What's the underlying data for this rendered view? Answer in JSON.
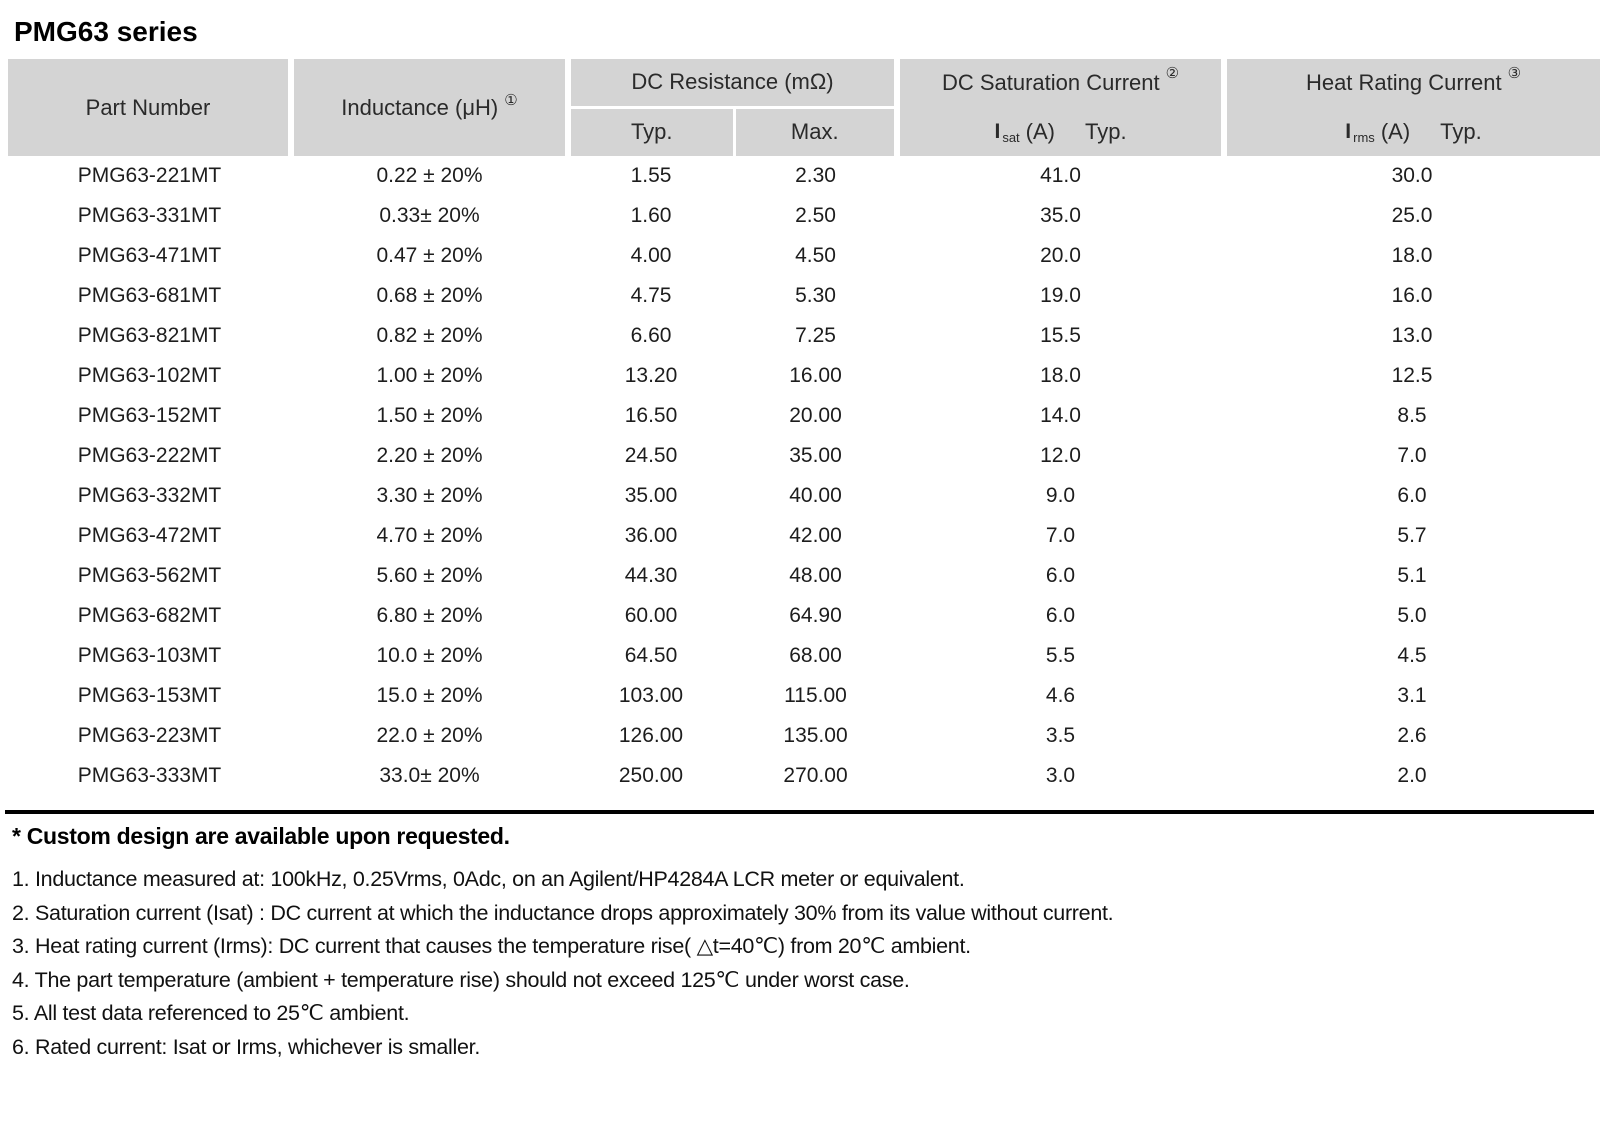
{
  "title": "PMG63 series",
  "colors": {
    "header_bg": "#d4d4d4",
    "rule": "#000000",
    "text": "#1d1d1d"
  },
  "table": {
    "headers": {
      "part_number": "Part Number",
      "inductance_label": "Inductance (μH)",
      "inductance_note_ref": "①",
      "dc_resistance_label": "DC Resistance (mΩ)",
      "typ": "Typ.",
      "max": "Max.",
      "saturation_label": "DC Saturation Current",
      "saturation_note_ref": "②",
      "saturation_sym": "I",
      "saturation_sym_sub": "sat",
      "saturation_unit": "(A)",
      "saturation_typ": "Typ.",
      "heat_label": "Heat Rating Current",
      "heat_note_ref": "③",
      "heat_sym": "I",
      "heat_sym_sub": "rms",
      "heat_unit": "(A)",
      "heat_typ": "Typ."
    },
    "rows": [
      {
        "part_number": "PMG63-221MT",
        "inductance": "0.22 ± 20%",
        "dcr_typ": "1.55",
        "dcr_max": "2.30",
        "isat": "41.0",
        "irms": "30.0"
      },
      {
        "part_number": "PMG63-331MT",
        "inductance": "0.33± 20%",
        "dcr_typ": "1.60",
        "dcr_max": "2.50",
        "isat": "35.0",
        "irms": "25.0"
      },
      {
        "part_number": "PMG63-471MT",
        "inductance": "0.47 ± 20%",
        "dcr_typ": "4.00",
        "dcr_max": "4.50",
        "isat": "20.0",
        "irms": "18.0"
      },
      {
        "part_number": "PMG63-681MT",
        "inductance": "0.68 ± 20%",
        "dcr_typ": "4.75",
        "dcr_max": "5.30",
        "isat": "19.0",
        "irms": "16.0"
      },
      {
        "part_number": "PMG63-821MT",
        "inductance": "0.82 ± 20%",
        "dcr_typ": "6.60",
        "dcr_max": "7.25",
        "isat": "15.5",
        "irms": "13.0"
      },
      {
        "part_number": "PMG63-102MT",
        "inductance": "1.00 ± 20%",
        "dcr_typ": "13.20",
        "dcr_max": "16.00",
        "isat": "18.0",
        "irms": "12.5"
      },
      {
        "part_number": "PMG63-152MT",
        "inductance": "1.50 ± 20%",
        "dcr_typ": "16.50",
        "dcr_max": "20.00",
        "isat": "14.0",
        "irms": "8.5"
      },
      {
        "part_number": "PMG63-222MT",
        "inductance": "2.20 ± 20%",
        "dcr_typ": "24.50",
        "dcr_max": "35.00",
        "isat": "12.0",
        "irms": "7.0"
      },
      {
        "part_number": "PMG63-332MT",
        "inductance": "3.30 ± 20%",
        "dcr_typ": "35.00",
        "dcr_max": "40.00",
        "isat": "9.0",
        "irms": "6.0"
      },
      {
        "part_number": "PMG63-472MT",
        "inductance": "4.70 ± 20%",
        "dcr_typ": "36.00",
        "dcr_max": "42.00",
        "isat": "7.0",
        "irms": "5.7"
      },
      {
        "part_number": "PMG63-562MT",
        "inductance": "5.60 ± 20%",
        "dcr_typ": "44.30",
        "dcr_max": "48.00",
        "isat": "6.0",
        "irms": "5.1"
      },
      {
        "part_number": "PMG63-682MT",
        "inductance": "6.80 ± 20%",
        "dcr_typ": "60.00",
        "dcr_max": "64.90",
        "isat": "6.0",
        "irms": "5.0"
      },
      {
        "part_number": "PMG63-103MT",
        "inductance": "10.0 ± 20%",
        "dcr_typ": "64.50",
        "dcr_max": "68.00",
        "isat": "5.5",
        "irms": "4.5"
      },
      {
        "part_number": "PMG63-153MT",
        "inductance": "15.0 ± 20%",
        "dcr_typ": "103.00",
        "dcr_max": "115.00",
        "isat": "4.6",
        "irms": "3.1"
      },
      {
        "part_number": "PMG63-223MT",
        "inductance": "22.0 ± 20%",
        "dcr_typ": "126.00",
        "dcr_max": "135.00",
        "isat": "3.5",
        "irms": "2.6"
      },
      {
        "part_number": "PMG63-333MT",
        "inductance": "33.0± 20%",
        "dcr_typ": "250.00",
        "dcr_max": "270.00",
        "isat": "3.0",
        "irms": "2.0"
      }
    ]
  },
  "footnotes": {
    "custom": "* Custom design are available upon requested.",
    "items": [
      "1. Inductance measured at: 100kHz, 0.25Vrms, 0Adc, on an Agilent/HP4284A LCR meter or equivalent.",
      "2. Saturation current (Isat) : DC current at which the inductance drops approximately 30% from its value without current.",
      "3. Heat rating current (Irms): DC current that causes the temperature rise( △t=40℃) from 20℃ ambient.",
      "4. The part temperature (ambient + temperature rise) should not exceed 125℃ under worst case.",
      "5. All test data referenced to 25℃ ambient.",
      "6. Rated current: Isat or Irms, whichever is smaller."
    ]
  }
}
